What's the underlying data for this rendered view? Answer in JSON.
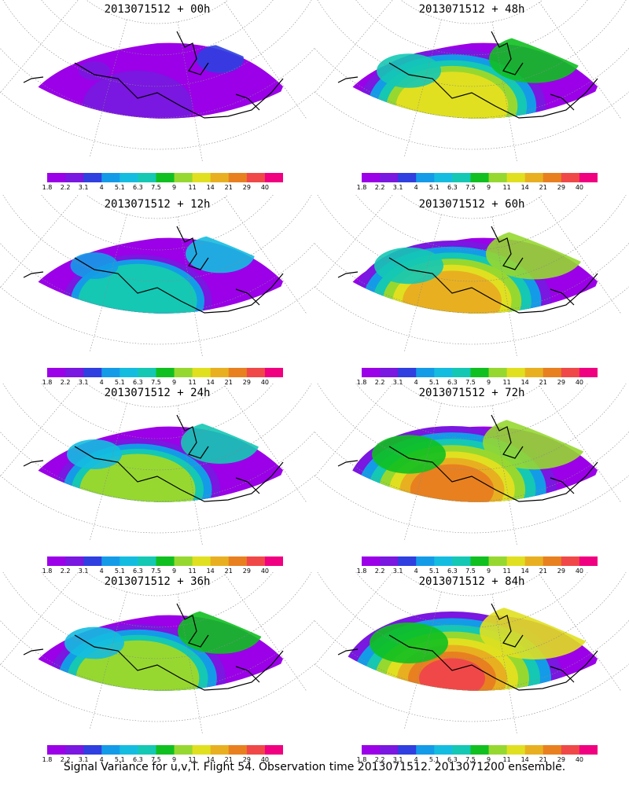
{
  "panels": [
    {
      "title": "2013071512 + 00h",
      "level": 0.0
    },
    {
      "title": "2013071512 + 48h",
      "level": 0.7
    },
    {
      "title": "2013071512 + 12h",
      "level": 0.35
    },
    {
      "title": "2013071512 + 60h",
      "level": 0.8
    },
    {
      "title": "2013071512 + 24h",
      "level": 0.5
    },
    {
      "title": "2013071512 + 72h",
      "level": 0.9
    },
    {
      "title": "2013071512 + 36h",
      "level": 0.6
    },
    {
      "title": "2013071512 + 84h",
      "level": 1.0
    }
  ],
  "colorbar": {
    "labels": [
      "1.8",
      "2.2",
      "3.1",
      "4",
      "5.1",
      "6.3",
      "7.5",
      "9",
      "11",
      "14",
      "21",
      "29",
      "40"
    ],
    "colors": [
      "#9b00e8",
      "#7a17e0",
      "#2f3fe0",
      "#149be8",
      "#14bde0",
      "#14c8b4",
      "#10c020",
      "#96d830",
      "#e0e020",
      "#e8b020",
      "#e88020",
      "#f04848",
      "#f00080"
    ]
  },
  "caption": "Signal Variance for u,v,T. Flight 54. Observation time 2013071512. 2013071200 ensemble."
}
